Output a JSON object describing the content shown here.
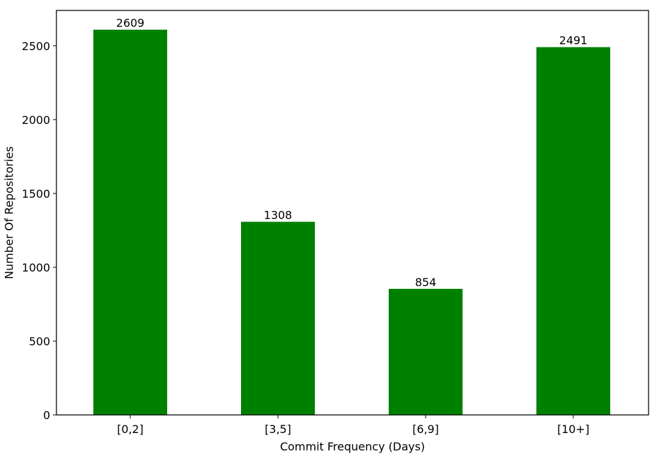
{
  "chart_data": {
    "type": "bar",
    "title": "",
    "xlabel": "Commit Frequency (Days)",
    "ylabel": "Number Of Repositories",
    "categories": [
      "[0,2]",
      "[3,5]",
      "[6,9]",
      "[10+]"
    ],
    "values": [
      2609,
      1308,
      854,
      2491
    ],
    "data_labels": [
      "2609",
      "1308",
      "854",
      "2491"
    ],
    "ylim": [
      0,
      2739.45
    ],
    "yticks": [
      0,
      500,
      1000,
      1500,
      2000,
      2500
    ],
    "ytick_labels": [
      "0",
      "500",
      "1000",
      "1500",
      "2000",
      "2500"
    ],
    "bar_color": "#008000",
    "grid": false,
    "legend": "none"
  }
}
